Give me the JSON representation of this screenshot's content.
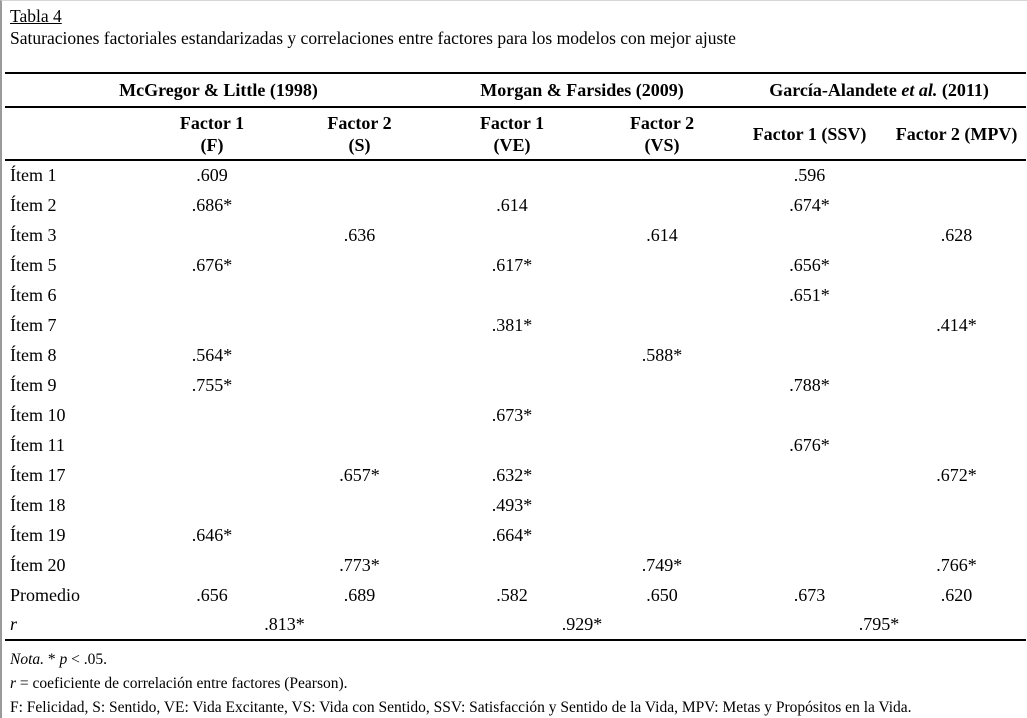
{
  "title": "Tabla 4",
  "subtitle": "Saturaciones factoriales estandarizadas y correlaciones entre factores para los modelos con mejor ajuste",
  "table": {
    "groups": [
      {
        "pre": "McGregor & Little (1998)",
        "italic": "",
        "post": ""
      },
      {
        "pre": "Morgan & Farsides (2009)",
        "italic": "",
        "post": ""
      },
      {
        "pre": "García-Alandete ",
        "italic": "et al.",
        "post": " (2011)"
      }
    ],
    "factor_headers": [
      {
        "line1": "Factor 1",
        "line2": "(F)"
      },
      {
        "line1": "Factor 2",
        "line2": "(S)"
      },
      {
        "line1": "Factor 1",
        "line2": "(VE)"
      },
      {
        "line1": "Factor 2",
        "line2": "(VS)"
      },
      {
        "line1": "Factor 1 (SSV)",
        "line2": ""
      },
      {
        "line1": "Factor 2 (MPV)",
        "line2": ""
      }
    ],
    "rows": [
      {
        "label": "Ítem 1",
        "values": [
          ".609",
          "",
          "",
          "",
          ".596",
          ""
        ]
      },
      {
        "label": "Ítem 2",
        "values": [
          ".686*",
          "",
          ".614",
          "",
          ".674*",
          ""
        ]
      },
      {
        "label": "Ítem 3",
        "values": [
          "",
          ".636",
          "",
          ".614",
          "",
          ".628"
        ]
      },
      {
        "label": "Ítem 5",
        "values": [
          ".676*",
          "",
          ".617*",
          "",
          ".656*",
          ""
        ]
      },
      {
        "label": "Ítem 6",
        "values": [
          "",
          "",
          "",
          "",
          ".651*",
          ""
        ]
      },
      {
        "label": "Ítem 7",
        "values": [
          "",
          "",
          ".381*",
          "",
          "",
          ".414*"
        ]
      },
      {
        "label": "Ítem 8",
        "values": [
          ".564*",
          "",
          "",
          ".588*",
          "",
          ""
        ]
      },
      {
        "label": "Ítem 9",
        "values": [
          ".755*",
          "",
          "",
          "",
          ".788*",
          ""
        ]
      },
      {
        "label": "Ítem 10",
        "values": [
          "",
          "",
          ".673*",
          "",
          "",
          ""
        ]
      },
      {
        "label": "Ítem 11",
        "values": [
          "",
          "",
          "",
          "",
          ".676*",
          ""
        ]
      },
      {
        "label": "Ítem 17",
        "values": [
          "",
          ".657*",
          ".632*",
          "",
          "",
          ".672*"
        ]
      },
      {
        "label": "Ítem 18",
        "values": [
          "",
          "",
          ".493*",
          "",
          "",
          ""
        ]
      },
      {
        "label": "Ítem 19",
        "values": [
          ".646*",
          "",
          ".664*",
          "",
          "",
          ""
        ]
      },
      {
        "label": "Ítem 20",
        "values": [
          "",
          ".773*",
          "",
          ".749*",
          "",
          ".766*"
        ]
      },
      {
        "label": "Promedio",
        "values": [
          ".656",
          ".689",
          ".582",
          ".650",
          ".673",
          ".620"
        ]
      }
    ],
    "r_row": {
      "label": "r",
      "values": [
        ".813*",
        ".929*",
        ".795*"
      ]
    }
  },
  "notes": {
    "nota_italic": "Nota.",
    "nota_mid": " * ",
    "p_italic": "p",
    "nota_rest": " < .05.",
    "r_italic": "r",
    "r_rest": " = coeficiente de correlación entre factores (Pearson).",
    "abbrev": "F: Felicidad, S: Sentido, VE: Vida Excitante, VS: Vida con Sentido, SSV: Satisfacción y Sentido de la Vida, MPV: Metas y Propósitos en la Vida."
  }
}
